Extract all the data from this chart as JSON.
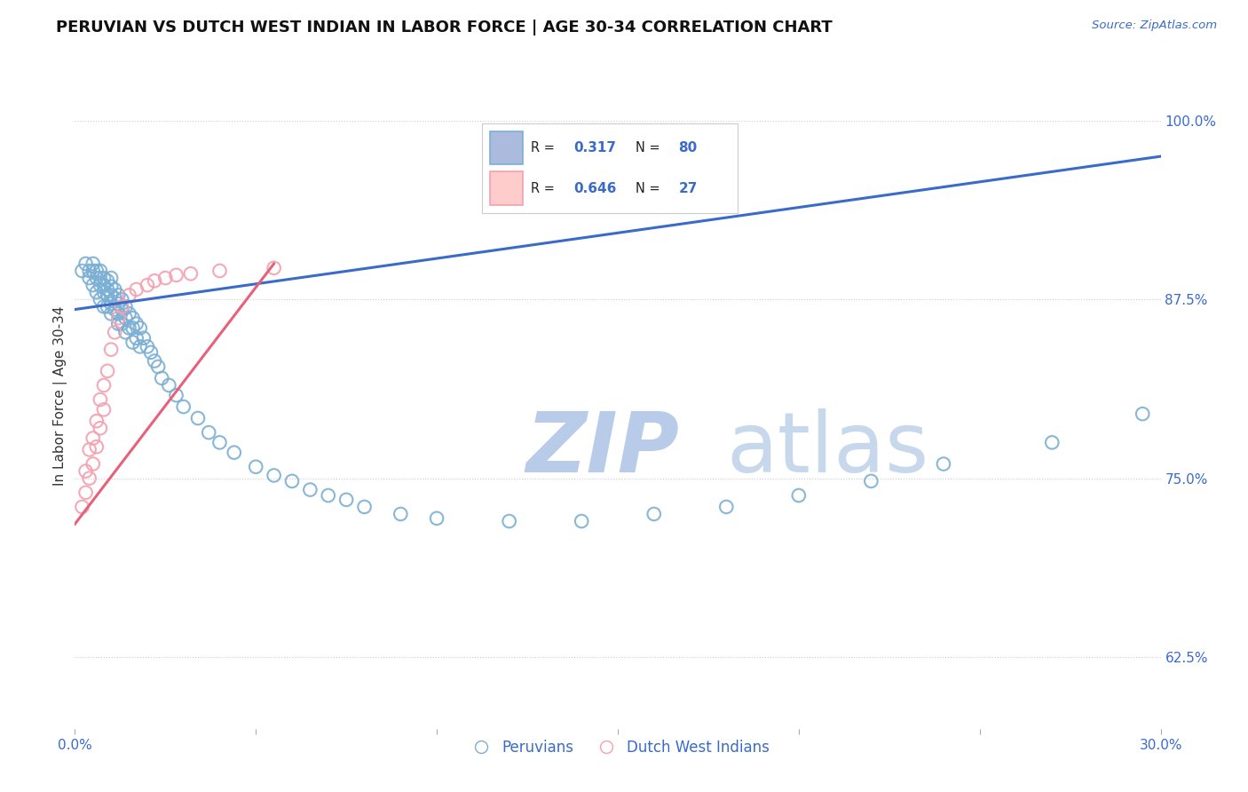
{
  "title": "PERUVIAN VS DUTCH WEST INDIAN IN LABOR FORCE | AGE 30-34 CORRELATION CHART",
  "source_text": "Source: ZipAtlas.com",
  "ylabel": "In Labor Force | Age 30-34",
  "xlim": [
    0.0,
    0.3
  ],
  "ylim": [
    0.575,
    1.04
  ],
  "xticks": [
    0.0,
    0.05,
    0.1,
    0.15,
    0.2,
    0.25,
    0.3
  ],
  "xticklabels": [
    "0.0%",
    "",
    "",
    "",
    "",
    "",
    "30.0%"
  ],
  "yticks_right": [
    0.625,
    0.75,
    0.875,
    1.0
  ],
  "yticklabels_right": [
    "62.5%",
    "75.0%",
    "87.5%",
    "100.0%"
  ],
  "blue_color": "#7BAFD4",
  "pink_color": "#F4A0B0",
  "trend_blue": "#3A6BC9",
  "trend_pink": "#E8607A",
  "R_blue": 0.317,
  "N_blue": 80,
  "R_pink": 0.646,
  "N_pink": 27,
  "watermark_blue": "ZIP",
  "watermark_atlas": "atlas",
  "watermark_color_blue": "#B8CBE8",
  "watermark_color_atlas": "#C8D8EC",
  "grid_color": "#CCCCCC",
  "blue_scatter_x": [
    0.002,
    0.003,
    0.004,
    0.004,
    0.005,
    0.005,
    0.005,
    0.006,
    0.006,
    0.006,
    0.007,
    0.007,
    0.007,
    0.007,
    0.008,
    0.008,
    0.008,
    0.008,
    0.009,
    0.009,
    0.009,
    0.009,
    0.01,
    0.01,
    0.01,
    0.01,
    0.01,
    0.011,
    0.011,
    0.011,
    0.012,
    0.012,
    0.012,
    0.012,
    0.013,
    0.013,
    0.013,
    0.014,
    0.014,
    0.014,
    0.015,
    0.015,
    0.016,
    0.016,
    0.016,
    0.017,
    0.017,
    0.018,
    0.018,
    0.019,
    0.02,
    0.021,
    0.022,
    0.023,
    0.024,
    0.026,
    0.028,
    0.03,
    0.034,
    0.037,
    0.04,
    0.044,
    0.05,
    0.055,
    0.06,
    0.065,
    0.07,
    0.075,
    0.08,
    0.09,
    0.1,
    0.12,
    0.14,
    0.16,
    0.18,
    0.2,
    0.22,
    0.24,
    0.27,
    0.295
  ],
  "blue_scatter_y": [
    0.895,
    0.9,
    0.895,
    0.89,
    0.9,
    0.895,
    0.885,
    0.895,
    0.89,
    0.88,
    0.895,
    0.89,
    0.885,
    0.875,
    0.89,
    0.885,
    0.88,
    0.87,
    0.888,
    0.882,
    0.878,
    0.87,
    0.89,
    0.884,
    0.878,
    0.872,
    0.865,
    0.882,
    0.876,
    0.868,
    0.878,
    0.872,
    0.865,
    0.858,
    0.875,
    0.868,
    0.858,
    0.87,
    0.862,
    0.852,
    0.865,
    0.855,
    0.862,
    0.855,
    0.845,
    0.858,
    0.848,
    0.855,
    0.842,
    0.848,
    0.842,
    0.838,
    0.832,
    0.828,
    0.82,
    0.815,
    0.808,
    0.8,
    0.792,
    0.782,
    0.775,
    0.768,
    0.758,
    0.752,
    0.748,
    0.742,
    0.738,
    0.735,
    0.73,
    0.725,
    0.722,
    0.72,
    0.72,
    0.725,
    0.73,
    0.738,
    0.748,
    0.76,
    0.775,
    0.795
  ],
  "pink_scatter_x": [
    0.002,
    0.003,
    0.003,
    0.004,
    0.004,
    0.005,
    0.005,
    0.006,
    0.006,
    0.007,
    0.007,
    0.008,
    0.008,
    0.009,
    0.01,
    0.011,
    0.012,
    0.013,
    0.015,
    0.017,
    0.02,
    0.022,
    0.025,
    0.028,
    0.032,
    0.04,
    0.055
  ],
  "pink_scatter_y": [
    0.73,
    0.755,
    0.74,
    0.77,
    0.75,
    0.778,
    0.76,
    0.79,
    0.772,
    0.805,
    0.785,
    0.815,
    0.798,
    0.825,
    0.84,
    0.852,
    0.862,
    0.87,
    0.878,
    0.882,
    0.885,
    0.888,
    0.89,
    0.892,
    0.893,
    0.895,
    0.897
  ],
  "blue_trend_x0": 0.0,
  "blue_trend_y0": 0.868,
  "blue_trend_x1": 0.3,
  "blue_trend_y1": 0.975,
  "pink_trend_x0": 0.0,
  "pink_trend_y0": 0.718,
  "pink_trend_x1": 0.055,
  "pink_trend_y1": 0.9
}
